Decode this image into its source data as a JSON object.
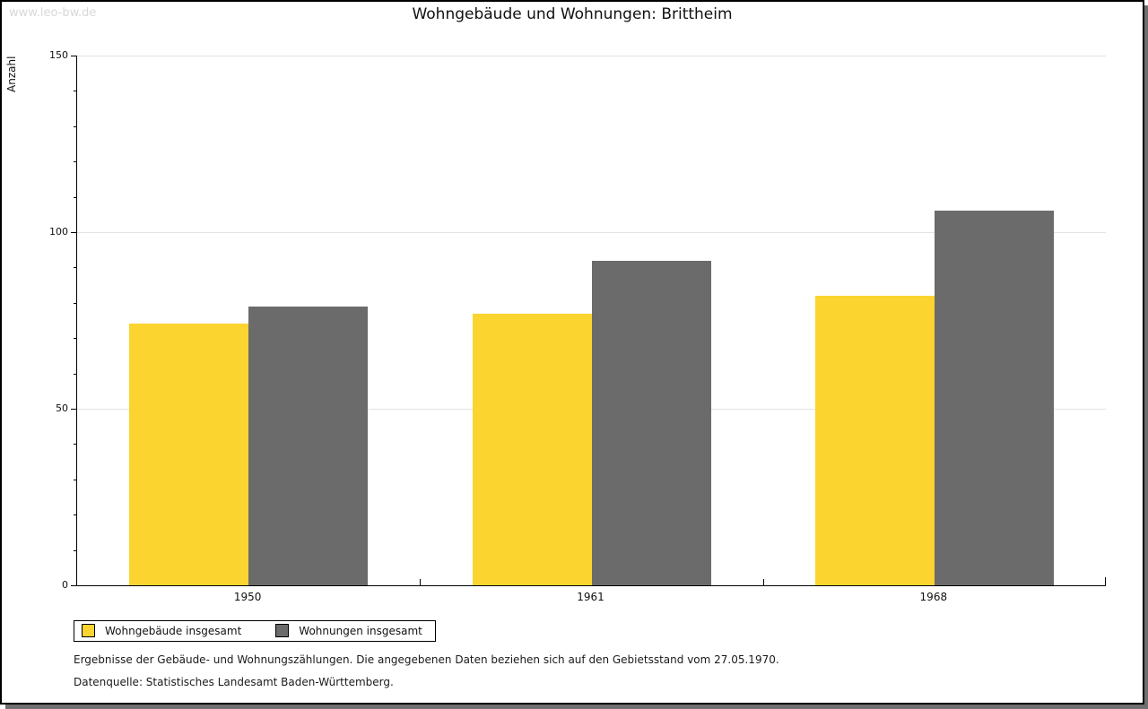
{
  "watermark": "www.leo-bw.de",
  "header": {
    "title": "Wohngebäude und Wohnungen: Brittheim"
  },
  "footnotes": {
    "line1": "Ergebnisse der Gebäude- und Wohnungszählungen. Die angegebenen Daten beziehen sich auf den Gebietsstand vom 27.05.1970.",
    "line2": "Datenquelle: Statistisches Landesamt Baden-Württemberg."
  },
  "chart_data": {
    "type": "bar",
    "title": "Wohngebäude und Wohnungen: Brittheim",
    "xlabel": "",
    "ylabel": "Anzahl",
    "categories": [
      "1950",
      "1961",
      "1968"
    ],
    "series": [
      {
        "name": "Wohngebäude insgesamt",
        "color": "#FCD42F",
        "values": [
          74,
          77,
          82
        ]
      },
      {
        "name": "Wohnungen insgesamt",
        "color": "#6B6B6B",
        "values": [
          79,
          92,
          106
        ]
      }
    ],
    "ylim": [
      0,
      150
    ],
    "yticks": [
      0,
      50,
      100,
      150
    ],
    "y_minor_step": 10,
    "grid": "horizontal-major",
    "gridline_color": "#e2e2e2",
    "legend_position": "bottom-left",
    "frame_shadow_color": "#707070"
  }
}
